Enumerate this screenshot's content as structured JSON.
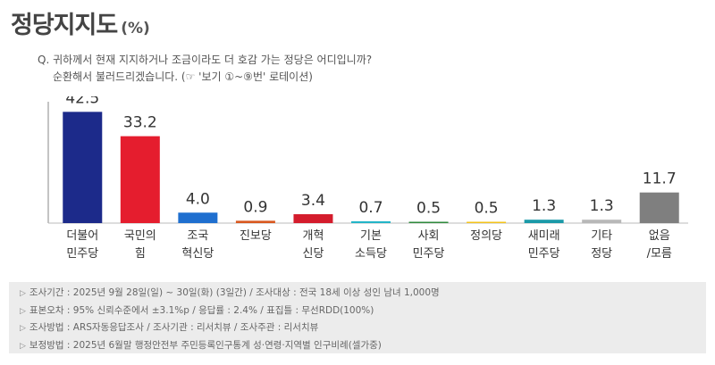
{
  "header": {
    "title": "정당지지도",
    "unit": "(%)"
  },
  "question": {
    "line1": "Q. 귀하께서 현재 지지하거나 조금이라도 더 호감 가는 정당은 어디입니까?",
    "line2": "순환해서 불러드리겠습니다. (☞ '보기 ①~⑨번' 로테이션)"
  },
  "chart_data": {
    "type": "bar",
    "categories": [
      [
        "더불어",
        "민주당"
      ],
      [
        "국민의",
        "힘"
      ],
      [
        "조국",
        "혁신당"
      ],
      [
        "진보당"
      ],
      [
        "개혁",
        "신당"
      ],
      [
        "기본",
        "소득당"
      ],
      [
        "사회",
        "민주당"
      ],
      [
        "정의당"
      ],
      [
        "새미래",
        "민주당"
      ],
      [
        "기타",
        "정당"
      ],
      [
        "없음",
        "/모름"
      ]
    ],
    "values": [
      42.5,
      33.2,
      4.0,
      0.9,
      3.4,
      0.7,
      0.5,
      0.5,
      1.3,
      1.3,
      11.7
    ],
    "value_labels": [
      "42.5",
      "33.2",
      "4.0",
      "0.9",
      "3.4",
      "0.7",
      "0.5",
      "0.5",
      "1.3",
      "1.3",
      "11.7"
    ],
    "colors": [
      "#1c2a8a",
      "#e51d2e",
      "#1f6fcf",
      "#d9581f",
      "#d41c2c",
      "#23b5c8",
      "#2e8a3c",
      "#f3c21a",
      "#1a9aa8",
      "#b8b8b8",
      "#7f7f7f"
    ],
    "ylim": [
      0,
      45
    ]
  },
  "footer": {
    "lines": [
      "조사기간 : 2025년 9월 28일(일) ~ 30일(화) (3일간) / 조사대상 : 전국 18세 이상 성인 남녀 1,000명",
      "표본오차 : 95% 신뢰수준에서 ±3.1%p / 응답률 : 2.4% / 표집틀 : 무선RDD(100%)",
      "조사방법 : ARS자동응답조사 / 조사기관 : 리서치뷰 / 조사주관 : 리서치뷰",
      "보정방법 : 2025년 6월말 행정안전부 주민등록인구통계 성·연령·지역별 인구비례(셀가중)"
    ]
  }
}
